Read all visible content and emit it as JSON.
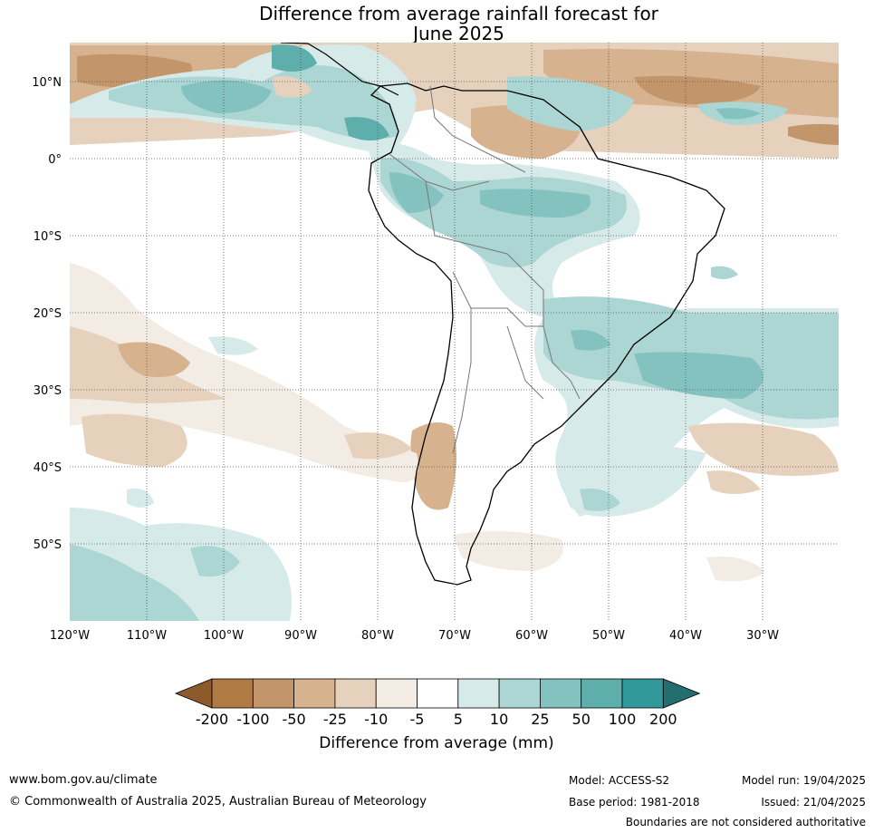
{
  "title_line1": "Difference from average rainfall forecast for",
  "title_line2": "June 2025",
  "map": {
    "lat_labels": [
      "10°N",
      "0°",
      "10°S",
      "20°S",
      "30°S",
      "40°S",
      "50°S"
    ],
    "lon_labels": [
      "120°W",
      "110°W",
      "100°W",
      "90°W",
      "80°W",
      "70°W",
      "60°W",
      "50°W",
      "40°W",
      "30°W"
    ],
    "grid": "dotted"
  },
  "legend": {
    "title": "Difference from average (mm)",
    "ticks": [
      "-200",
      "-100",
      "-50",
      "-25",
      "-10",
      "-5",
      "5",
      "10",
      "25",
      "50",
      "100",
      "200"
    ],
    "colors": [
      "#8c5a2b",
      "#b07a45",
      "#c2956a",
      "#d6b28e",
      "#e6d1bd",
      "#f2ece4",
      "#ffffff",
      "#d6ebe9",
      "#abd6d4",
      "#84c2c0",
      "#5eaeab",
      "#31999a",
      "#246e70"
    ]
  },
  "footer": {
    "website": "www.bom.gov.au/climate",
    "copyright": "© Commonwealth of Australia 2025, Australian Bureau of Meteorology",
    "model": "Model: ACCESS-S2",
    "base_period": "Base period: 1981-2018",
    "model_run": "Model run: 19/04/2025",
    "issued": "Issued: 21/04/2025",
    "disclaimer": "Boundaries are not considered authoritative"
  }
}
